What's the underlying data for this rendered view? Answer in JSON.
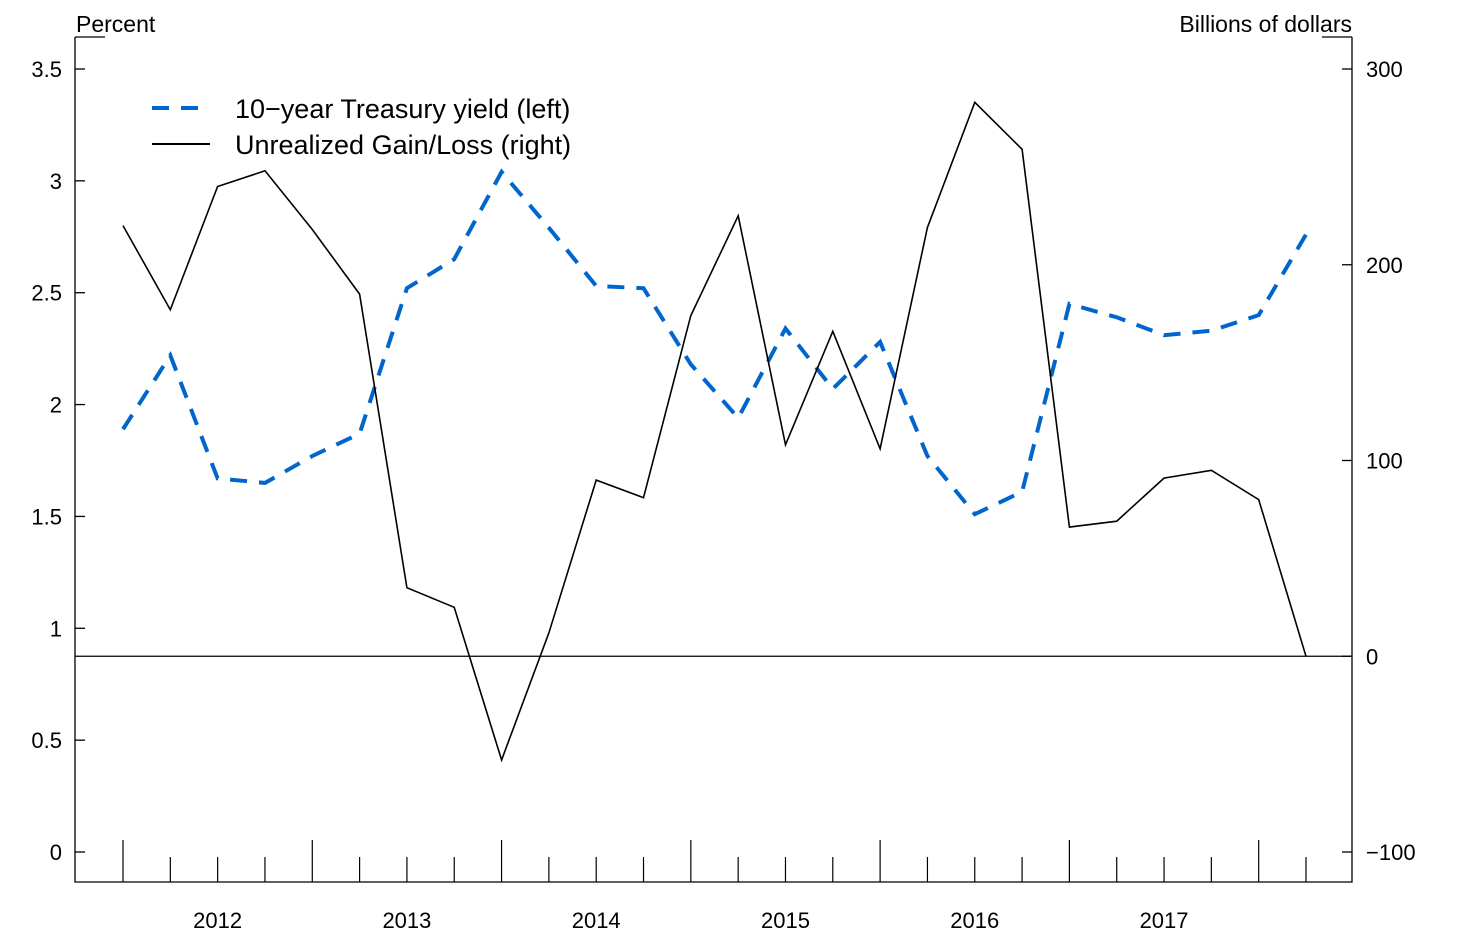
{
  "chart_data": {
    "type": "line",
    "left_axis": {
      "label": "Percent",
      "range": [
        0,
        3.5
      ],
      "ticks": [
        0,
        0.5,
        1,
        1.5,
        2,
        2.5,
        3,
        3.5
      ],
      "tick_labels": [
        "0",
        "0.5",
        "1",
        "1.5",
        "2",
        "2.5",
        "3",
        "3.5"
      ]
    },
    "right_axis": {
      "label": "Billions of dollars",
      "range": [
        -100,
        300
      ],
      "ticks": [
        -100,
        0,
        100,
        200,
        300
      ],
      "tick_labels": [
        "−100",
        "0",
        "100",
        "200",
        "300"
      ]
    },
    "x": [
      "2012Q1",
      "2012Q2",
      "2012Q3",
      "2012Q4",
      "2013Q1",
      "2013Q2",
      "2013Q3",
      "2013Q4",
      "2014Q1",
      "2014Q2",
      "2014Q3",
      "2014Q4",
      "2015Q1",
      "2015Q2",
      "2015Q3",
      "2015Q4",
      "2016Q1",
      "2016Q2",
      "2016Q3",
      "2016Q4",
      "2017Q1",
      "2017Q2",
      "2017Q3",
      "2017Q4",
      "2018Q1",
      "2018Q2"
    ],
    "year_labels": [
      "2012",
      "2013",
      "2014",
      "2015",
      "2016",
      "2017"
    ],
    "series": [
      {
        "name": "10−year Treasury yield (left)",
        "axis": "left",
        "style": "dashed",
        "color": "#0066cc",
        "values": [
          1.89,
          2.22,
          1.67,
          1.65,
          1.77,
          1.87,
          2.52,
          2.65,
          3.04,
          2.79,
          2.53,
          2.52,
          2.18,
          1.94,
          2.34,
          2.07,
          2.28,
          1.77,
          1.51,
          1.61,
          2.45,
          2.39,
          2.31,
          2.33,
          2.4,
          2.76
        ]
      },
      {
        "name": "Unrealized Gain/Loss (right)",
        "axis": "right",
        "style": "solid",
        "color": "#000000",
        "values": [
          220,
          177,
          240,
          248,
          218,
          185,
          35,
          25,
          -53,
          12,
          90,
          81,
          174,
          225,
          108,
          166,
          106,
          219,
          283,
          259,
          66,
          69,
          91,
          95,
          80,
          0
        ]
      }
    ],
    "legend_placement": "top-left",
    "reference_line": 0
  }
}
